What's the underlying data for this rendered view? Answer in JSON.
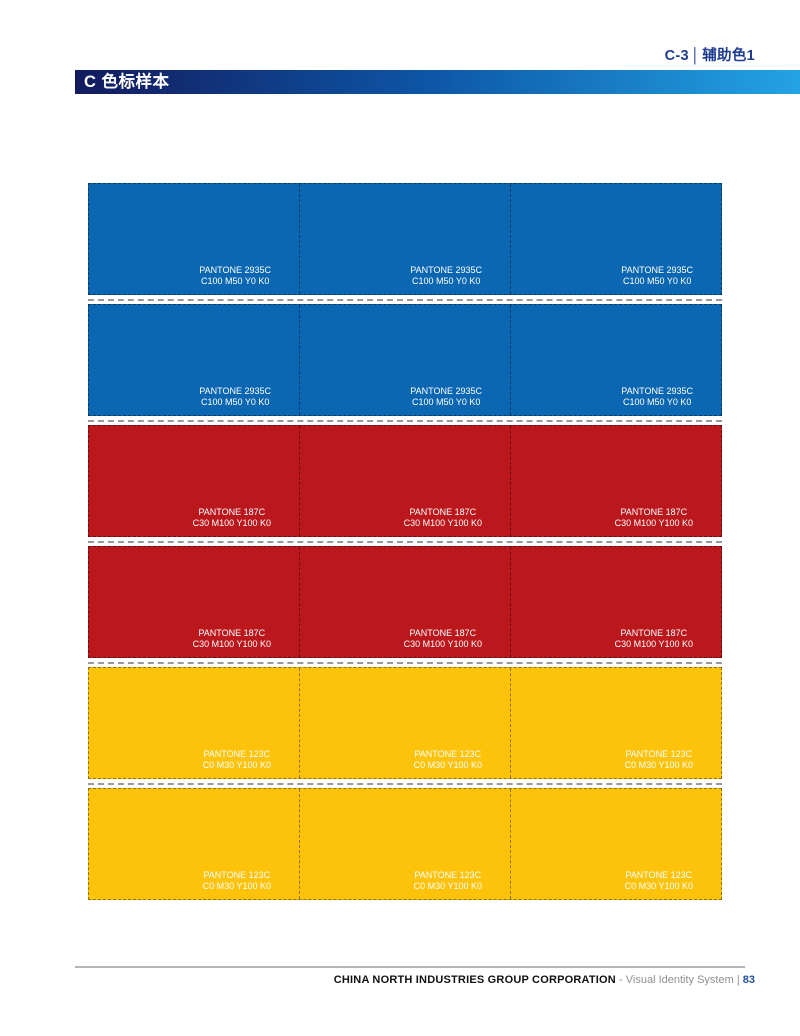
{
  "header": {
    "section_code": "C-3",
    "separator": "│",
    "section_title": "辅助色1",
    "bar_title": "C 色标样本"
  },
  "swatch_grid": {
    "columns": 3,
    "rows": [
      {
        "color_name": "auxiliary-blue",
        "hex": "#0c67b3",
        "pantone": "PANTONE 2935C",
        "cmyk": "C100 M50 Y0 K0"
      },
      {
        "color_name": "auxiliary-blue",
        "hex": "#0c67b3",
        "pantone": "PANTONE 2935C",
        "cmyk": "C100 M50 Y0 K0"
      },
      {
        "color_name": "auxiliary-red",
        "hex": "#bb181e",
        "pantone": "PANTONE 187C",
        "cmyk": "C30 M100 Y100 K0"
      },
      {
        "color_name": "auxiliary-red",
        "hex": "#bb181e",
        "pantone": "PANTONE 187C",
        "cmyk": "C30 M100 Y100 K0"
      },
      {
        "color_name": "auxiliary-yellow",
        "hex": "#fcc30a",
        "pantone": "PANTONE 123C",
        "cmyk": "C0 M30 Y100 K0"
      },
      {
        "color_name": "auxiliary-yellow",
        "hex": "#fcc30a",
        "pantone": "PANTONE 123C",
        "cmyk": "C0 M30 Y100 K0"
      }
    ]
  },
  "footer": {
    "company": "CHINA NORTH INDUSTRIES GROUP CORPORATION",
    "dash": "-",
    "system_name": "Visual Identity System",
    "divider": "|",
    "page_number": "83"
  },
  "theme": {
    "tab_text_color": "#1e3c90",
    "bar_gradient_left": "#131b5e",
    "bar_gradient_mid": "#0d55a5",
    "bar_gradient_right": "#23a3e4",
    "page_number_color": "#1d4f9e"
  }
}
